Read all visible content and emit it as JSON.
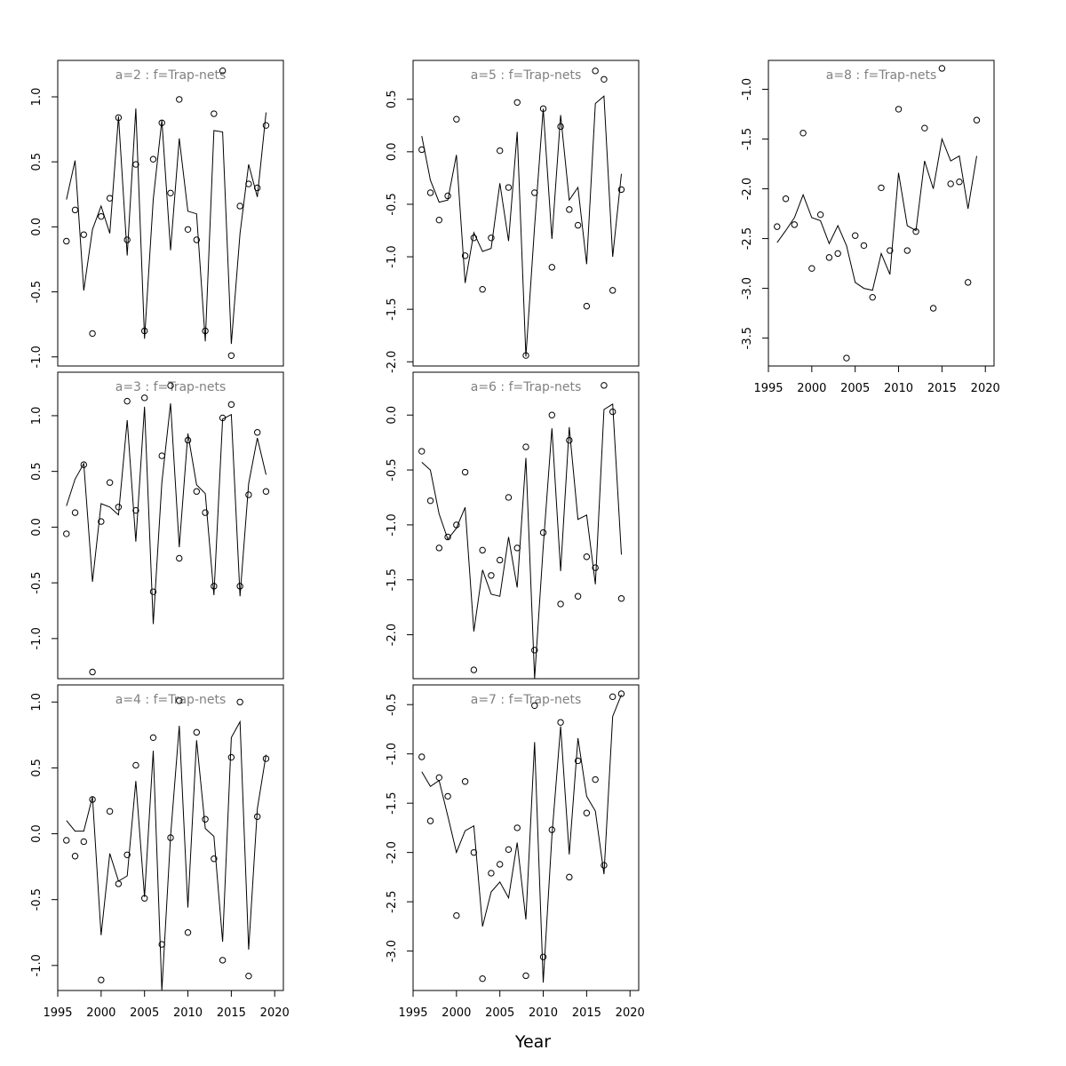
{
  "figure": {
    "xlabel": "Year"
  },
  "chart_data": [
    {
      "type": "scatter",
      "title": "a=2  :  f=Trap-nets",
      "xlim": [
        1995,
        2021
      ],
      "ylim": [
        -1.07,
        1.28
      ],
      "yticks": [
        -1.0,
        -0.5,
        0.0,
        0.5,
        1.0
      ],
      "x": [
        1996,
        1997,
        1998,
        1999,
        2000,
        2001,
        2002,
        2003,
        2004,
        2005,
        2006,
        2007,
        2008,
        2009,
        2010,
        2011,
        2012,
        2013,
        2014,
        2015,
        2016,
        2017,
        2018,
        2019
      ],
      "observed": [
        -0.11,
        0.13,
        -0.06,
        -0.82,
        0.08,
        0.22,
        0.84,
        -0.1,
        0.48,
        -0.8,
        0.52,
        0.8,
        0.26,
        0.98,
        -0.02,
        -0.1,
        -0.8,
        0.87,
        1.2,
        -0.99,
        0.16,
        0.33,
        0.3,
        0.78
      ],
      "fitted": [
        0.21,
        0.51,
        -0.49,
        -0.02,
        0.16,
        -0.05,
        0.85,
        -0.22,
        0.91,
        -0.86,
        0.21,
        0.82,
        -0.18,
        0.68,
        0.12,
        0.1,
        -0.88,
        0.74,
        0.73,
        -0.9,
        -0.05,
        0.48,
        0.23,
        0.88
      ]
    },
    {
      "type": "scatter",
      "title": "a=3  :  f=Trap-nets",
      "xlim": [
        1995,
        2021
      ],
      "ylim": [
        -1.36,
        1.39
      ],
      "yticks": [
        -1.0,
        -0.5,
        0.0,
        0.5,
        1.0
      ],
      "x": [
        1996,
        1997,
        1998,
        1999,
        2000,
        2001,
        2002,
        2003,
        2004,
        2005,
        2006,
        2007,
        2008,
        2009,
        2010,
        2011,
        2012,
        2013,
        2014,
        2015,
        2016,
        2017,
        2018,
        2019
      ],
      "observed": [
        -0.06,
        0.13,
        0.56,
        -1.3,
        0.05,
        0.4,
        0.18,
        1.13,
        0.15,
        1.16,
        -0.58,
        0.64,
        1.27,
        -0.28,
        0.78,
        0.32,
        0.13,
        -0.53,
        0.98,
        1.1,
        -0.53,
        0.29,
        0.85,
        0.32
      ],
      "fitted": [
        0.19,
        0.43,
        0.57,
        -0.49,
        0.21,
        0.18,
        0.11,
        0.96,
        -0.13,
        1.08,
        -0.87,
        0.4,
        1.11,
        -0.18,
        0.84,
        0.38,
        0.3,
        -0.61,
        0.97,
        1.01,
        -0.62,
        0.39,
        0.8,
        0.47
      ]
    },
    {
      "type": "scatter",
      "title": "a=4  :  f=Trap-nets",
      "xlim": [
        1995,
        2021
      ],
      "ylim": [
        -1.19,
        1.13
      ],
      "yticks": [
        -1.0,
        -0.5,
        0.0,
        0.5,
        1.0
      ],
      "x": [
        1996,
        1997,
        1998,
        1999,
        2000,
        2001,
        2002,
        2003,
        2004,
        2005,
        2006,
        2007,
        2008,
        2009,
        2010,
        2011,
        2012,
        2013,
        2014,
        2015,
        2016,
        2017,
        2018,
        2019
      ],
      "observed": [
        -0.05,
        -0.17,
        -0.06,
        0.26,
        -1.11,
        0.17,
        -0.38,
        -0.16,
        0.52,
        -0.49,
        0.73,
        -0.84,
        -0.03,
        1.01,
        -0.75,
        0.77,
        0.11,
        -0.19,
        -0.96,
        0.58,
        1.0,
        -1.08,
        0.13,
        0.57
      ],
      "fitted": [
        0.1,
        0.02,
        0.02,
        0.28,
        -0.77,
        -0.15,
        -0.36,
        -0.32,
        0.4,
        -0.48,
        0.63,
        -1.19,
        -0.02,
        0.82,
        -0.56,
        0.71,
        0.04,
        -0.02,
        -0.82,
        0.73,
        0.85,
        -0.88,
        0.19,
        0.6
      ]
    },
    {
      "type": "scatter",
      "title": "a=5  :  f=Trap-nets",
      "xlim": [
        1995,
        2021
      ],
      "ylim": [
        -2.04,
        0.87
      ],
      "yticks": [
        -2.0,
        -1.5,
        -1.0,
        -0.5,
        0.0,
        0.5
      ],
      "x": [
        1996,
        1997,
        1998,
        1999,
        2000,
        2001,
        2002,
        2003,
        2004,
        2005,
        2006,
        2007,
        2008,
        2009,
        2010,
        2011,
        2012,
        2013,
        2014,
        2015,
        2016,
        2017,
        2018,
        2019
      ],
      "observed": [
        0.02,
        -0.39,
        -0.65,
        -0.42,
        0.31,
        -0.99,
        -0.82,
        -1.31,
        -0.82,
        0.01,
        -0.34,
        0.47,
        -1.94,
        -0.39,
        0.41,
        -1.1,
        0.24,
        -0.55,
        -0.7,
        -1.47,
        0.77,
        0.69,
        -1.32,
        -0.36
      ],
      "fitted": [
        0.15,
        -0.27,
        -0.48,
        -0.46,
        -0.03,
        -1.25,
        -0.77,
        -0.95,
        -0.92,
        -0.3,
        -0.85,
        0.19,
        -1.95,
        -0.71,
        0.41,
        -0.83,
        0.35,
        -0.46,
        -0.34,
        -1.07,
        0.46,
        0.53,
        -1.0,
        -0.21
      ]
    },
    {
      "type": "scatter",
      "title": "a=6  :  f=Trap-nets",
      "xlim": [
        1995,
        2021
      ],
      "ylim": [
        -2.4,
        0.39
      ],
      "yticks": [
        -2.0,
        -1.5,
        -1.0,
        -0.5,
        0.0
      ],
      "x": [
        1996,
        1997,
        1998,
        1999,
        2000,
        2001,
        2002,
        2003,
        2004,
        2005,
        2006,
        2007,
        2008,
        2009,
        2010,
        2011,
        2012,
        2013,
        2014,
        2015,
        2016,
        2017,
        2018,
        2019
      ],
      "observed": [
        -0.33,
        -0.78,
        -1.21,
        -1.11,
        -1.0,
        -0.52,
        -2.32,
        -1.23,
        -1.46,
        -1.32,
        -0.75,
        -1.21,
        -0.29,
        -2.14,
        -1.07,
        0.0,
        -1.72,
        -0.23,
        -1.65,
        -1.29,
        -1.39,
        0.27,
        0.03,
        -1.67
      ],
      "fitted": [
        -0.43,
        -0.5,
        -0.9,
        -1.13,
        -1.03,
        -0.84,
        -1.97,
        -1.41,
        -1.63,
        -1.65,
        -1.11,
        -1.57,
        -0.39,
        -2.4,
        -1.2,
        -0.12,
        -1.42,
        -0.11,
        -0.95,
        -0.91,
        -1.54,
        0.05,
        0.1,
        -1.27
      ]
    },
    {
      "type": "scatter",
      "title": "a=7  :  f=Trap-nets",
      "xlim": [
        1995,
        2021
      ],
      "ylim": [
        -3.4,
        -0.3
      ],
      "yticks": [
        -3.0,
        -2.5,
        -2.0,
        -1.5,
        -1.0,
        -0.5
      ],
      "x": [
        1996,
        1997,
        1998,
        1999,
        2000,
        2001,
        2002,
        2003,
        2004,
        2005,
        2006,
        2007,
        2008,
        2009,
        2010,
        2011,
        2012,
        2013,
        2014,
        2015,
        2016,
        2017,
        2018,
        2019
      ],
      "observed": [
        -1.03,
        -1.68,
        -1.24,
        -1.43,
        -2.64,
        -1.28,
        -2.0,
        -3.28,
        -2.21,
        -2.12,
        -1.97,
        -1.75,
        -3.25,
        -0.51,
        -3.06,
        -1.77,
        -0.68,
        -2.25,
        -1.07,
        -1.6,
        -1.26,
        -2.13,
        -0.42,
        -0.39
      ],
      "fitted": [
        -1.18,
        -1.33,
        -1.27,
        -1.63,
        -2.0,
        -1.78,
        -1.73,
        -2.75,
        -2.4,
        -2.3,
        -2.46,
        -1.9,
        -2.68,
        -0.88,
        -3.32,
        -1.83,
        -0.72,
        -2.02,
        -0.84,
        -1.43,
        -1.58,
        -2.22,
        -0.62,
        -0.4
      ]
    },
    {
      "type": "scatter",
      "title": "a=8  :  f=Trap-nets",
      "xlim": [
        1995,
        2021
      ],
      "ylim": [
        -3.78,
        -0.71
      ],
      "yticks": [
        -3.5,
        -3.0,
        -2.5,
        -2.0,
        -1.5,
        -1.0
      ],
      "x": [
        1996,
        1997,
        1998,
        1999,
        2000,
        2001,
        2002,
        2003,
        2004,
        2005,
        2006,
        2007,
        2008,
        2009,
        2010,
        2011,
        2012,
        2013,
        2014,
        2015,
        2016,
        2017,
        2018,
        2019
      ],
      "observed": [
        -2.38,
        -2.1,
        -2.36,
        -1.44,
        -2.8,
        -2.26,
        -2.69,
        -2.65,
        -3.7,
        -2.47,
        -2.57,
        -3.09,
        -1.99,
        -2.62,
        -1.2,
        -2.62,
        -2.43,
        -1.39,
        -3.2,
        -0.79,
        -1.95,
        -1.93,
        -2.94,
        -1.31
      ],
      "fitted": [
        -2.54,
        -2.42,
        -2.29,
        -2.06,
        -2.29,
        -2.32,
        -2.55,
        -2.37,
        -2.57,
        -2.94,
        -3.0,
        -3.02,
        -2.65,
        -2.86,
        -1.84,
        -2.37,
        -2.42,
        -1.72,
        -2.0,
        -1.5,
        -1.72,
        -1.67,
        -2.2,
        -1.67
      ]
    }
  ]
}
